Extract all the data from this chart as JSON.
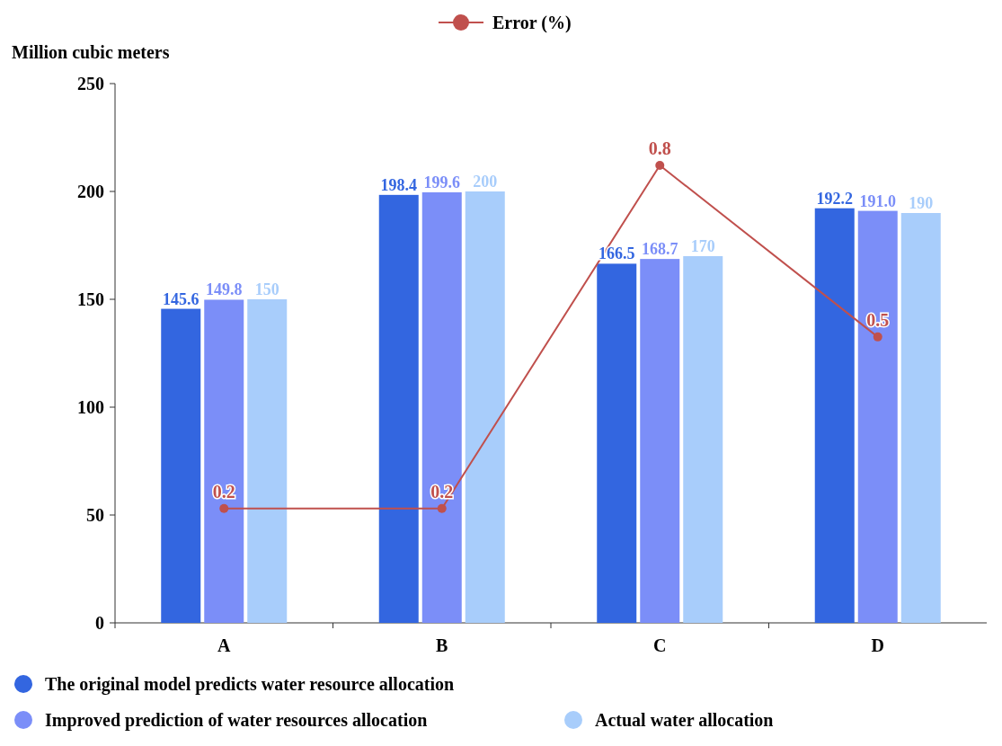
{
  "chart_data": {
    "type": "bar",
    "ylabel": "Million cubic meters",
    "categories": [
      "A",
      "B",
      "C",
      "D"
    ],
    "series": [
      {
        "name": "The original model predicts water resource allocation",
        "color": "#3366e0",
        "values": [
          145.6,
          198.4,
          166.5,
          192.2
        ],
        "value_labels": [
          "145.6",
          "198.4",
          "166.5",
          "192.2"
        ]
      },
      {
        "name": "Improved prediction of water resources allocation",
        "color": "#7b8ef8",
        "values": [
          149.8,
          199.6,
          168.7,
          191.0
        ],
        "value_labels": [
          "149.8",
          "199.6",
          "168.7",
          "191.0"
        ]
      },
      {
        "name": "Actual water allocation",
        "color": "#a8cdfb",
        "values": [
          150,
          200,
          170,
          190
        ],
        "value_labels": [
          "150",
          "200",
          "170",
          "190"
        ]
      },
      {
        "name": "Error (%)",
        "type": "line",
        "axis": "y2",
        "color": "#c0504d",
        "values": [
          0.2,
          0.2,
          0.8,
          0.5
        ],
        "value_labels": [
          "0.2",
          "0.2",
          "0.8",
          "0.5"
        ],
        "marker": "circle"
      }
    ],
    "ylim": [
      0,
      250
    ],
    "yticks": [
      0,
      50,
      100,
      150,
      200,
      250
    ],
    "y2lim": [
      0,
      0.943
    ],
    "grid": false,
    "legend": "bottom"
  }
}
